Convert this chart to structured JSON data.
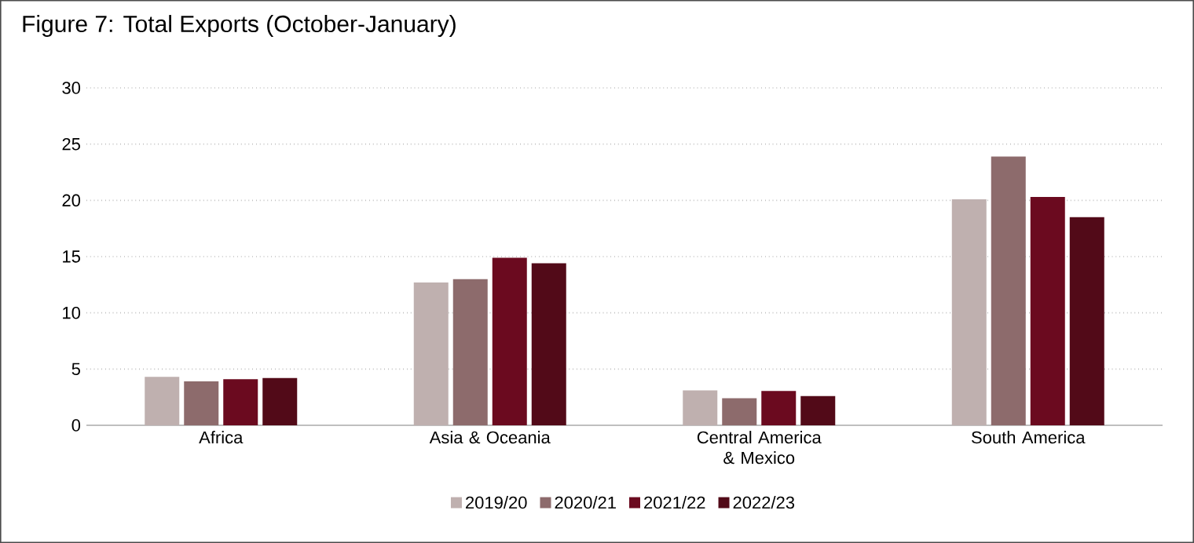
{
  "chart_data": {
    "type": "bar",
    "title": "Figure 7: Total Exports (October-January)",
    "categories": [
      "Africa",
      "Asia & Oceania",
      "Central America & Mexico",
      "South America"
    ],
    "series": [
      {
        "name": "2019/20",
        "color": "#bfb0af",
        "values": [
          4.3,
          12.7,
          3.1,
          20.1
        ]
      },
      {
        "name": "2020/21",
        "color": "#8d6b6c",
        "values": [
          3.9,
          13,
          2.4,
          23.9
        ]
      },
      {
        "name": "2021/22",
        "color": "#6b0a1f",
        "values": [
          4.1,
          14.9,
          3.05,
          20.3
        ]
      },
      {
        "name": "2022/23",
        "color": "#520a18",
        "values": [
          4.2,
          14.4,
          2.6,
          18.5
        ]
      }
    ],
    "ylim": [
      0,
      30
    ],
    "yticks": [
      0,
      5,
      10,
      15,
      20,
      25,
      30
    ],
    "grid": "y",
    "legend": "bottom"
  }
}
